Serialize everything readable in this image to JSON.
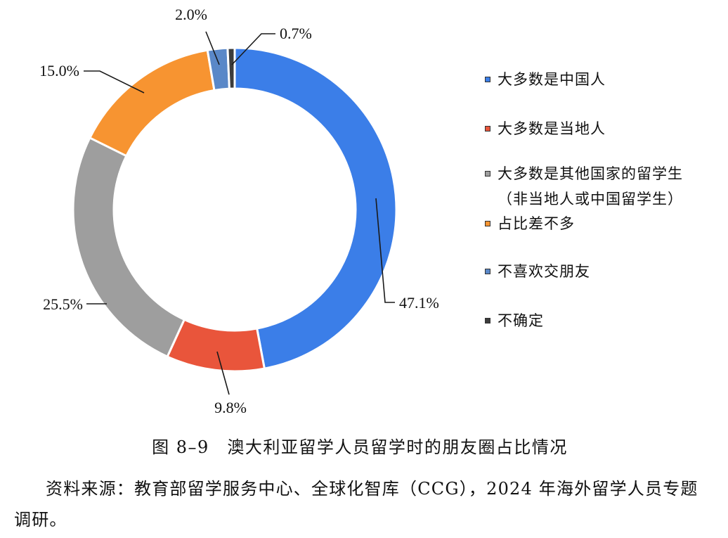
{
  "figure": {
    "caption": "图 8–9　澳大利亚留学人员留学时的朋友圈占比情况",
    "source": "资料来源：教育部留学服务中心、全球化智库（CCG），2024 年海外留学人员专题调研。"
  },
  "chart_data": {
    "type": "pie",
    "donut": true,
    "legend_position": "right",
    "slices": [
      {
        "label": "大多数是中国人",
        "value": 47.1,
        "value_label": "47.1%",
        "color": "#3b7ee8"
      },
      {
        "label": "大多数是当地人",
        "value": 9.8,
        "value_label": "9.8%",
        "color": "#e9553b"
      },
      {
        "label": "大多数是其他国家的留学生（非当地人或中国留学生）",
        "value": 25.5,
        "value_label": "25.5%",
        "color": "#9e9e9e"
      },
      {
        "label": "占比差不多",
        "value": 15.0,
        "value_label": "15.0%",
        "color": "#f79431"
      },
      {
        "label": "不喜欢交朋友",
        "value": 2.0,
        "value_label": "2.0%",
        "color": "#5a88c8"
      },
      {
        "label": "不确定",
        "value": 0.7,
        "value_label": "0.7%",
        "color": "#3c3c3c"
      }
    ]
  }
}
